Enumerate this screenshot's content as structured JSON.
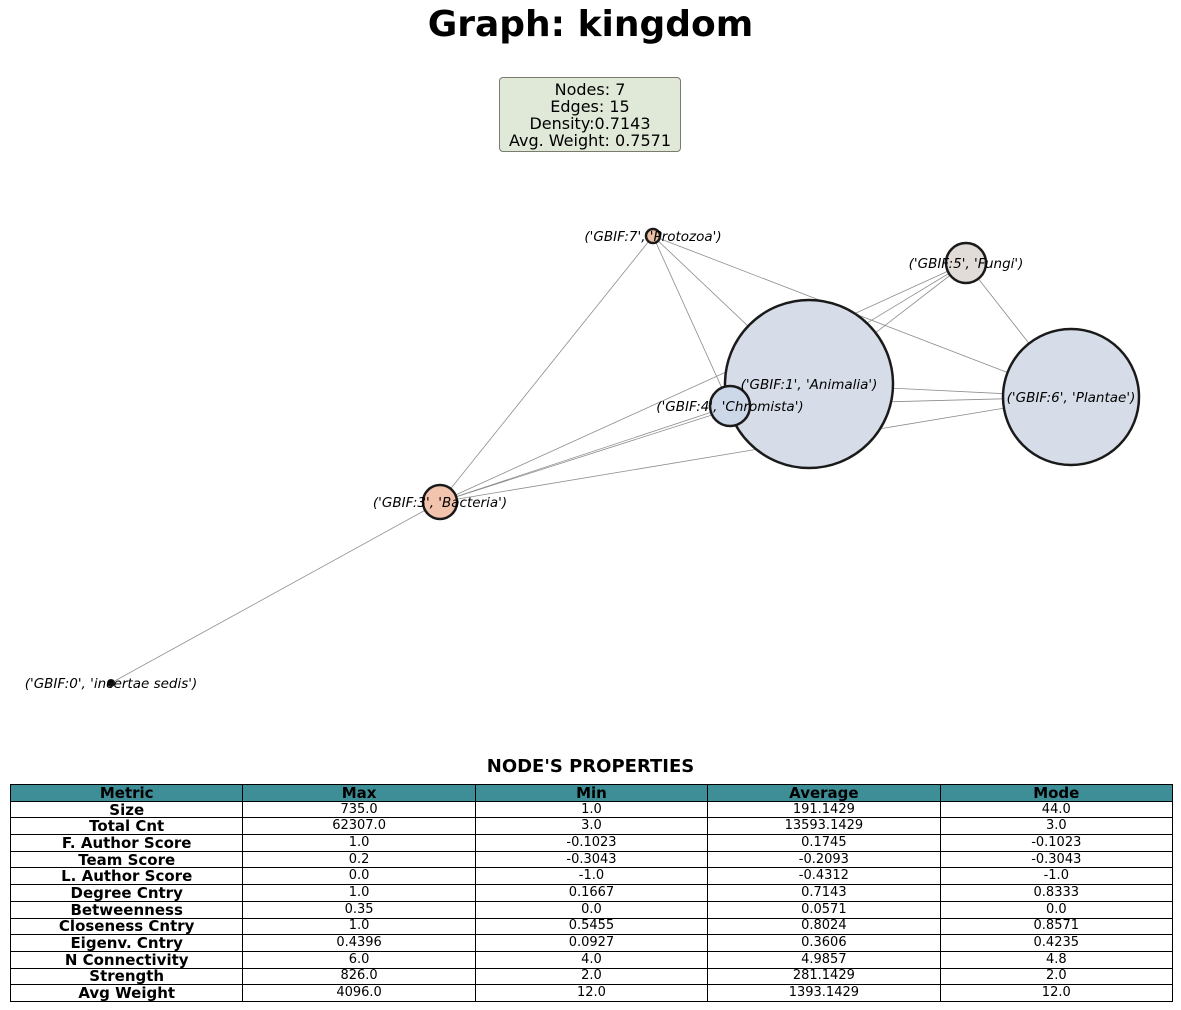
{
  "title": "Graph: kingdom",
  "stats": {
    "nodes": "Nodes: 7",
    "edges": "Edges: 15",
    "density": "Density:0.7143",
    "avg_weight": "Avg. Weight: 0.7571"
  },
  "graph": {
    "nodes": [
      {
        "id": "animalia",
        "label": "('GBIF:1', 'Animalia')",
        "fill": "#d6dde8"
      },
      {
        "id": "plantae",
        "label": "('GBIF:6', 'Plantae')",
        "fill": "#d6dde8"
      },
      {
        "id": "fungi",
        "label": "('GBIF:5', 'Fungi')",
        "fill": "#e2dcd8"
      },
      {
        "id": "protozoa",
        "label": "('GBIF:7', 'Protozoa')",
        "fill": "#ecc0a3"
      },
      {
        "id": "chromista",
        "label": "('GBIF:4', 'Chromista')",
        "fill": "#ccd8e8"
      },
      {
        "id": "bacteria",
        "label": "('GBIF:3', 'Bacteria')",
        "fill": "#f2c4ad"
      },
      {
        "id": "incertae",
        "label": "('GBIF:0', 'incertae sedis')",
        "fill": "#111111"
      }
    ],
    "edges": [
      [
        "protozoa",
        "bacteria"
      ],
      [
        "protozoa",
        "chromista"
      ],
      [
        "protozoa",
        "animalia"
      ],
      [
        "protozoa",
        "plantae"
      ],
      [
        "fungi",
        "chromista"
      ],
      [
        "fungi",
        "animalia"
      ],
      [
        "fungi",
        "plantae"
      ],
      [
        "fungi",
        "bacteria"
      ],
      [
        "animalia",
        "plantae"
      ],
      [
        "chromista",
        "plantae"
      ],
      [
        "bacteria",
        "chromista"
      ],
      [
        "bacteria",
        "animalia"
      ],
      [
        "bacteria",
        "plantae"
      ],
      [
        "bacteria",
        "incertae"
      ],
      [
        "chromista",
        "animalia"
      ]
    ]
  },
  "table": {
    "title": "NODE'S PROPERTIES",
    "headers": [
      "Metric",
      "Max",
      "Min",
      "Average",
      "Mode"
    ],
    "header_color": "#3e8e97",
    "rows": [
      [
        "Size",
        "735.0",
        "1.0",
        "191.1429",
        "44.0"
      ],
      [
        "Total Cnt",
        "62307.0",
        "3.0",
        "13593.1429",
        "3.0"
      ],
      [
        "F. Author Score",
        "1.0",
        "-0.1023",
        "0.1745",
        "-0.1023"
      ],
      [
        "Team Score",
        "0.2",
        "-0.3043",
        "-0.2093",
        "-0.3043"
      ],
      [
        "L. Author Score",
        "0.0",
        "-1.0",
        "-0.4312",
        "-1.0"
      ],
      [
        "Degree Cntry",
        "1.0",
        "0.1667",
        "0.7143",
        "0.8333"
      ],
      [
        "Betweenness",
        "0.35",
        "0.0",
        "0.0571",
        "0.0"
      ],
      [
        "Closeness Cntry",
        "1.0",
        "0.5455",
        "0.8024",
        "0.8571"
      ],
      [
        "Eigenv. Cntry",
        "0.4396",
        "0.0927",
        "0.3606",
        "0.4235"
      ],
      [
        "N Connectivity",
        "6.0",
        "4.0",
        "4.9857",
        "4.8"
      ],
      [
        "Strength",
        "826.0",
        "2.0",
        "281.1429",
        "2.0"
      ],
      [
        "Avg Weight",
        "4096.0",
        "12.0",
        "1393.1429",
        "12.0"
      ]
    ]
  }
}
